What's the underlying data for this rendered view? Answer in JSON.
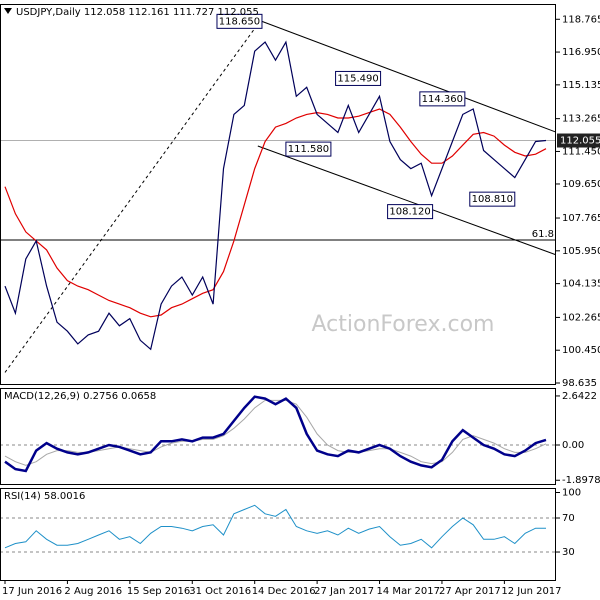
{
  "chart_data": [
    {
      "type": "line",
      "title": "USDJPY,Daily  112.058 112.161 111.727 112.055",
      "series": [
        {
          "color": "#00005a",
          "values": [
            104.0,
            102.5,
            105.5,
            106.5,
            104.0,
            102.0,
            101.5,
            100.8,
            101.3,
            101.5,
            102.5,
            101.8,
            102.2,
            101.0,
            100.5,
            103.0,
            104.0,
            104.5,
            103.5,
            104.5,
            103.0,
            110.5,
            113.5,
            114.0,
            117.0,
            117.5,
            116.5,
            117.5,
            114.5,
            115.0,
            113.5,
            113.0,
            112.5,
            114.0,
            112.5,
            113.5,
            114.5,
            112.0,
            111.0,
            110.5,
            110.8,
            109.0,
            110.5,
            112.0,
            113.5,
            113.8,
            111.5,
            111.0,
            110.5,
            110.0,
            111.0,
            112.0,
            112.055
          ]
        },
        {
          "color": "#e00000",
          "values": [
            109.5,
            108.0,
            107.0,
            106.5,
            106.0,
            105.0,
            104.3,
            104.0,
            103.8,
            103.5,
            103.2,
            103.0,
            102.8,
            102.5,
            102.3,
            102.4,
            102.8,
            103.0,
            103.3,
            103.6,
            103.8,
            104.8,
            106.5,
            108.5,
            110.5,
            112.0,
            112.8,
            113.0,
            113.3,
            113.5,
            113.6,
            113.5,
            113.3,
            113.3,
            113.4,
            113.6,
            113.8,
            113.5,
            112.8,
            112.0,
            111.3,
            110.8,
            110.8,
            111.2,
            111.8,
            112.4,
            112.5,
            112.3,
            111.8,
            111.4,
            111.2,
            111.3,
            111.6
          ]
        }
      ],
      "ylim": [
        98.58,
        119.61
      ],
      "yticks": [
        98.635,
        {
          "value": 100.45,
          "label": "100.450"
        },
        102.265,
        104.135,
        {
          "value": 105.95,
          "label": "105.950"
        },
        107.765,
        {
          "value": 109.65,
          "label": "109.650"
        },
        {
          "value": 111.45,
          "label": "111.450"
        },
        113.265,
        115.135,
        {
          "value": 116.95,
          "label": "116.950"
        },
        118.765
      ],
      "last_price": 112.055,
      "fib": {
        "label": "61.8",
        "value": 106.55
      },
      "annotations": [
        {
          "label": "118.650",
          "value": 118.65,
          "x": 24.7,
          "side": "left"
        },
        {
          "label": "115.490",
          "value": 115.49,
          "x": 36.1,
          "side": "left"
        },
        {
          "label": "114.360",
          "value": 114.36,
          "x": 44.2,
          "side": "left"
        },
        {
          "label": "111.580",
          "value": 111.58,
          "x": 27.0,
          "side": "right"
        },
        {
          "label": "108.120",
          "value": 108.12,
          "x": 41.1,
          "side": "left"
        },
        {
          "label": "108.810",
          "value": 108.81,
          "x": 49.0,
          "side": "left"
        }
      ],
      "trendlines": [
        {
          "x": [
            24.7,
            53
          ],
          "y": [
            118.65,
            112.51
          ],
          "dashed": false
        },
        {
          "x": [
            24.3,
            53
          ],
          "y": [
            111.75,
            105.72
          ],
          "dashed": false
        },
        {
          "x": [
            0,
            24.5
          ],
          "y": [
            99.22,
            118.65
          ],
          "dashed": true
        }
      ],
      "watermark": "ActionForex.com"
    },
    {
      "type": "line",
      "title": "MACD(12,26,9) 0.2756 0.0658",
      "series": [
        {
          "color": "#00008b",
          "width": 2.5,
          "values": [
            -0.9,
            -1.3,
            -1.4,
            -0.3,
            0.1,
            -0.2,
            -0.4,
            -0.5,
            -0.4,
            -0.2,
            0.0,
            -0.1,
            -0.3,
            -0.5,
            -0.4,
            0.2,
            0.2,
            0.3,
            0.2,
            0.4,
            0.4,
            0.6,
            1.3,
            2.0,
            2.6,
            2.5,
            2.2,
            2.5,
            2.0,
            0.6,
            -0.3,
            -0.5,
            -0.6,
            -0.3,
            -0.4,
            -0.2,
            0.0,
            -0.2,
            -0.6,
            -0.9,
            -1.1,
            -1.2,
            -0.8,
            0.2,
            0.8,
            0.4,
            0.0,
            -0.2,
            -0.5,
            -0.6,
            -0.3,
            0.1,
            0.2756
          ]
        },
        {
          "color": "#a8a8a8",
          "width": 1,
          "values": [
            -0.6,
            -0.9,
            -1.1,
            -0.9,
            -0.5,
            -0.3,
            -0.3,
            -0.4,
            -0.4,
            -0.3,
            -0.2,
            -0.1,
            -0.2,
            -0.3,
            -0.4,
            -0.1,
            0.1,
            0.2,
            0.2,
            0.3,
            0.3,
            0.5,
            0.9,
            1.4,
            2.0,
            2.4,
            2.4,
            2.4,
            2.2,
            1.5,
            0.6,
            0.0,
            -0.3,
            -0.4,
            -0.4,
            -0.3,
            -0.2,
            -0.2,
            -0.4,
            -0.6,
            -0.9,
            -1.0,
            -0.9,
            -0.4,
            0.3,
            0.5,
            0.3,
            0.1,
            -0.2,
            -0.4,
            -0.4,
            -0.2,
            0.0658
          ]
        }
      ],
      "ylim": [
        -2.1,
        3.07
      ],
      "yticks": [
        2.6422,
        {
          "value": 0,
          "label": "0.00"
        },
        -1.8978
      ],
      "levels": [
        0
      ]
    },
    {
      "type": "line",
      "title": "RSI(14) 58.0016",
      "series": [
        {
          "color": "#1e90c8",
          "width": 1,
          "values": [
            35,
            40,
            42,
            55,
            45,
            38,
            38,
            40,
            45,
            50,
            55,
            45,
            48,
            40,
            52,
            60,
            60,
            58,
            55,
            60,
            62,
            50,
            75,
            80,
            85,
            75,
            72,
            80,
            60,
            55,
            52,
            55,
            50,
            58,
            52,
            57,
            60,
            48,
            38,
            40,
            45,
            35,
            48,
            60,
            70,
            62,
            45,
            45,
            48,
            40,
            52,
            58,
            58.0016
          ]
        }
      ],
      "ylim": [
        -2.9,
        105.3
      ],
      "yticks": [
        100,
        70,
        30
      ],
      "levels": [
        70,
        30
      ],
      "categories": [
        "17 Jun 2016",
        null,
        null,
        null,
        null,
        null,
        "2 Aug 2016",
        null,
        null,
        null,
        null,
        null,
        "15 Sep 2016",
        null,
        null,
        null,
        null,
        null,
        "31 Oct 2016",
        null,
        null,
        null,
        null,
        null,
        "14 Dec 2016",
        null,
        null,
        null,
        null,
        null,
        "27 Jan 2017",
        null,
        null,
        null,
        null,
        null,
        "14 Mar 2017",
        null,
        null,
        null,
        null,
        null,
        "27 Apr 2017",
        null,
        null,
        null,
        null,
        null,
        "12 Jun 2017",
        null,
        null,
        null,
        null
      ]
    }
  ]
}
